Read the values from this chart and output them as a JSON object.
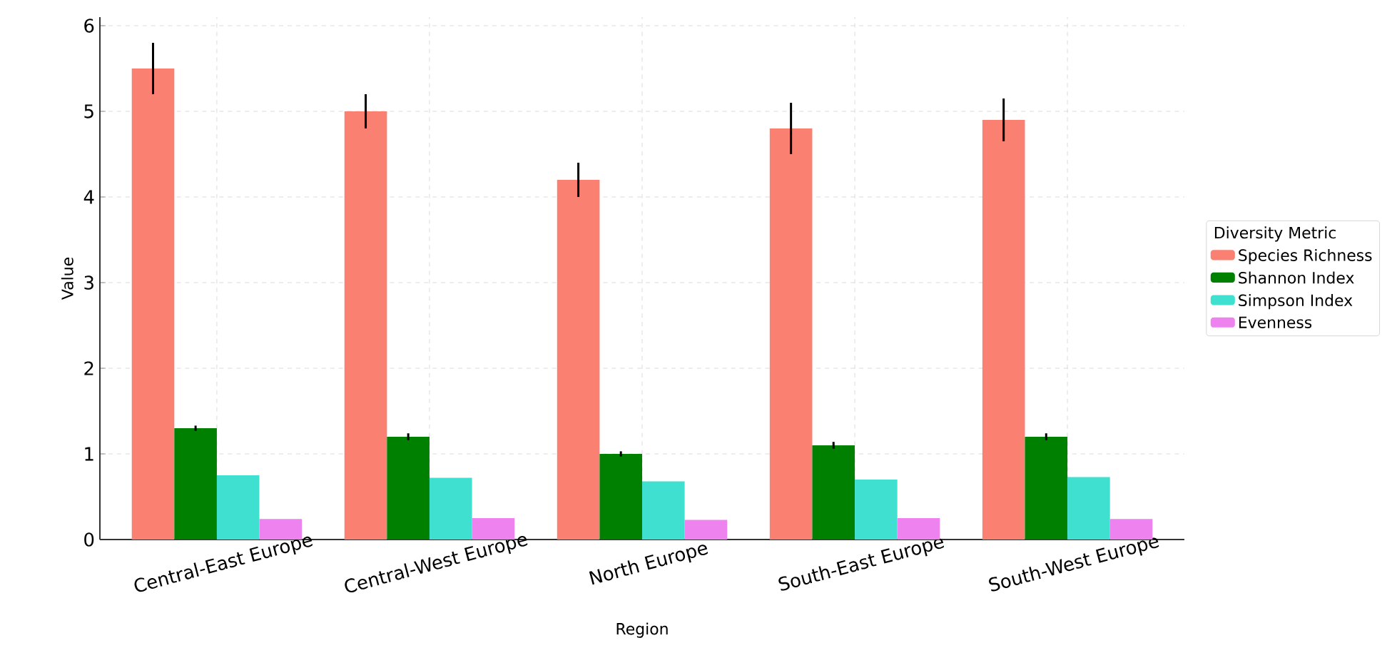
{
  "chart_data": {
    "type": "bar",
    "xlabel": "Region",
    "ylabel": "Value",
    "legend_title": "Diversity Metric",
    "categories": [
      "Central-East Europe",
      "Central-West Europe",
      "North Europe",
      "South-East Europe",
      "South-West Europe"
    ],
    "series": [
      {
        "name": "Species Richness",
        "color": "#fa8072",
        "values": [
          5.5,
          5.0,
          4.2,
          4.8,
          4.9
        ],
        "errors": [
          0.3,
          0.2,
          0.2,
          0.3,
          0.25
        ]
      },
      {
        "name": "Shannon Index",
        "color": "#008000",
        "values": [
          1.3,
          1.2,
          1.0,
          1.1,
          1.2
        ],
        "errors": [
          0.03,
          0.04,
          0.03,
          0.04,
          0.04
        ]
      },
      {
        "name": "Simpson Index",
        "color": "#40e0d0",
        "values": [
          0.75,
          0.72,
          0.68,
          0.7,
          0.73
        ]
      },
      {
        "name": "Evenness",
        "color": "#ee82ee",
        "values": [
          0.24,
          0.25,
          0.23,
          0.25,
          0.24
        ]
      }
    ],
    "ylim": [
      0,
      6.1
    ],
    "yticks": [
      0,
      1,
      2,
      3,
      4,
      5,
      6
    ],
    "grid": true,
    "legend": "right"
  }
}
